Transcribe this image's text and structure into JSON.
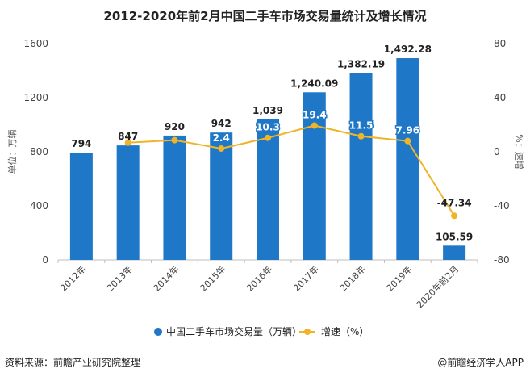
{
  "page": {
    "title": "2012-2020年前2月中国二手车市场交易量统计及增长情况",
    "source": "资料来源：前瞻产业研究院整理",
    "brand": "@前瞻经济学人APP"
  },
  "chart_data": {
    "type": "bar",
    "title": "2012-2020年前2月中国二手车市场交易量统计及增长情况",
    "categories": [
      "2012年",
      "2013年",
      "2014年",
      "2015年",
      "2016年",
      "2017年",
      "2018年",
      "2019年",
      "2020年前2月"
    ],
    "series": [
      {
        "name": "中国二手车市场交易量（万辆）",
        "type": "bar",
        "axis": "left",
        "color": "#1f77c7",
        "values": [
          794,
          847,
          920,
          942,
          1039,
          1240.09,
          1382.19,
          1492.28,
          105.59
        ],
        "labels": [
          "794",
          "847",
          "920",
          "942",
          "1,039",
          "1,240.09",
          "1,382.19",
          "1,492.28",
          "105.59"
        ]
      },
      {
        "name": "增速（%）",
        "type": "line",
        "axis": "right",
        "color": "#f0b428",
        "values": [
          null,
          6.7,
          8.6,
          2.4,
          10.3,
          19.4,
          11.5,
          7.96,
          -47.34
        ],
        "labels": [
          "",
          "",
          "",
          "2.4",
          "10.3",
          "19.4",
          "11.5",
          "7.96",
          "-47.34"
        ]
      }
    ],
    "ylabel_left": "单位：万辆",
    "ylabel_right": "%：速增",
    "ylim_left": [
      0,
      1600
    ],
    "yticks_left": [
      "0",
      "400",
      "800",
      "1200",
      "1600"
    ],
    "ylim_right": [
      -80,
      80
    ],
    "yticks_right": [
      "-80",
      "-40",
      "0",
      "40",
      "80"
    ],
    "grid": false,
    "legend_position": "bottom"
  }
}
